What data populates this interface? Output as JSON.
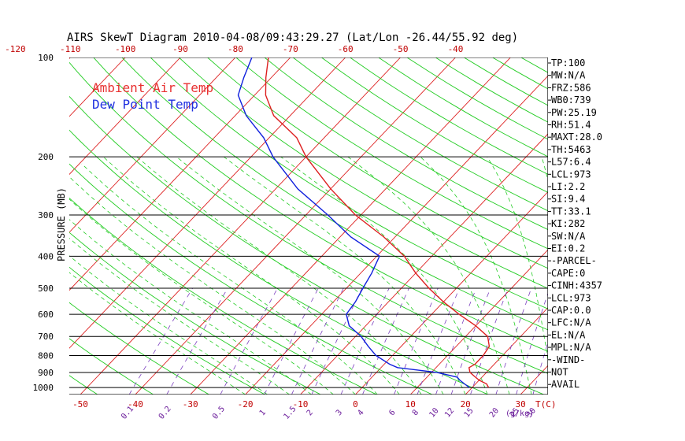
{
  "chart_data": {
    "type": "line",
    "title": "AIRS SkewT Diagram 2010-04-08/09:43:29.27 (Lat/Lon -26.44/55.92 deg)",
    "ylabel": "PRESSURE (MB)",
    "xlabel": "T(C)",
    "mixing_ratio_unit": "(g/kg)",
    "y_scale": "log",
    "ylim": [
      1050,
      100
    ],
    "xlim_bottom": [
      -52,
      35
    ],
    "pressure_ticks": [
      100,
      200,
      300,
      400,
      500,
      600,
      700,
      800,
      900,
      1000
    ],
    "bottom_temp_ticks": [
      -50,
      -40,
      -30,
      -20,
      -10,
      0,
      10,
      20,
      30
    ],
    "top_temp_ticks": [
      -120,
      -110,
      -100,
      -90,
      -80,
      -70,
      -60,
      -50,
      -40
    ],
    "mixing_ratio_labels": [
      "0.1",
      "0.2",
      "0.5",
      "1",
      "1.5",
      "2",
      "3",
      "4",
      "6",
      "8",
      "10",
      "12",
      "15",
      "20",
      "25",
      "30",
      "40"
    ],
    "legend": [
      {
        "label": "Ambient Air Temp",
        "color": "#e83030"
      },
      {
        "label": "Dew Point Temp",
        "color": "#2030e0"
      }
    ],
    "series": [
      {
        "name": "Ambient Air Temp",
        "color": "#dd2020",
        "points": [
          [
            1000,
            23
          ],
          [
            975,
            22
          ],
          [
            950,
            20
          ],
          [
            925,
            18.5
          ],
          [
            900,
            17
          ],
          [
            870,
            16
          ],
          [
            850,
            16.5
          ],
          [
            800,
            16.5
          ],
          [
            750,
            16
          ],
          [
            700,
            14
          ],
          [
            650,
            10
          ],
          [
            600,
            5
          ],
          [
            550,
            0
          ],
          [
            500,
            -5
          ],
          [
            450,
            -10
          ],
          [
            400,
            -15
          ],
          [
            350,
            -22
          ],
          [
            300,
            -31
          ],
          [
            250,
            -40
          ],
          [
            200,
            -50
          ],
          [
            175,
            -55
          ],
          [
            150,
            -63
          ],
          [
            130,
            -68
          ],
          [
            115,
            -71
          ],
          [
            100,
            -74
          ]
        ]
      },
      {
        "name": "Dew Point Temp",
        "color": "#1020dd",
        "points": [
          [
            1000,
            19.5
          ],
          [
            975,
            18
          ],
          [
            950,
            16.5
          ],
          [
            930,
            15.5
          ],
          [
            900,
            11
          ],
          [
            870,
            3
          ],
          [
            850,
            1
          ],
          [
            800,
            -3
          ],
          [
            750,
            -6
          ],
          [
            700,
            -9
          ],
          [
            650,
            -13
          ],
          [
            600,
            -15.5
          ],
          [
            550,
            -16
          ],
          [
            500,
            -17
          ],
          [
            450,
            -18
          ],
          [
            400,
            -19.5
          ],
          [
            350,
            -28
          ],
          [
            300,
            -36
          ],
          [
            250,
            -46
          ],
          [
            200,
            -56
          ],
          [
            175,
            -61
          ],
          [
            150,
            -68
          ],
          [
            130,
            -73
          ],
          [
            115,
            -75
          ],
          [
            100,
            -77
          ]
        ]
      }
    ],
    "indices": [
      "TP:100",
      "MW:N/A",
      "FRZ:586",
      "WB0:739",
      "PW:25.19",
      "RH:51.4",
      "MAXT:28.0",
      "TH:5463",
      "L57:6.4",
      "LCL:973",
      "LI:2.2",
      "SI:9.4",
      "TT:33.1",
      "KI:282",
      "SW:N/A",
      "EI:0.2",
      "-PARCEL-",
      "CAPE:0",
      "CINH:4357",
      "LCL:973",
      "CAP:0.0",
      "LFC:N/A",
      "EL:N/A",
      "MPL:N/A",
      "-WIND-",
      "NOT",
      "AVAIL"
    ],
    "colors": {
      "isotherm": "#dd2020",
      "dry_adiabat": "#22cc22",
      "moist_adiabat": "#22cc22",
      "mixing_ratio": "#7b3fbf",
      "isobar": "#000000"
    }
  }
}
